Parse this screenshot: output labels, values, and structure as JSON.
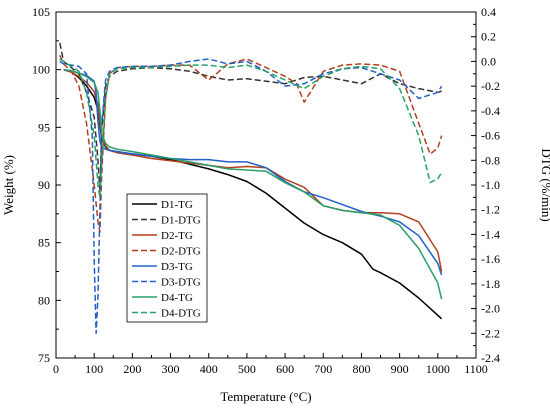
{
  "chart_data": {
    "type": "line",
    "xlabel": "Temperature (°C)",
    "ylabel_left": "Weight (%)",
    "ylabel_right": "DTG (%/min)",
    "xlim": [
      0,
      1100
    ],
    "ylim_left": [
      75,
      105
    ],
    "ylim_right": [
      -2.4,
      0.4
    ],
    "x_ticks": [
      "0",
      "100",
      "200",
      "300",
      "400",
      "500",
      "600",
      "700",
      "800",
      "900",
      "1000",
      "1100"
    ],
    "y_left_ticks": [
      "75",
      "80",
      "85",
      "90",
      "95",
      "100",
      "105"
    ],
    "y_right_ticks": [
      "-2.4",
      "-2.2",
      "-2.0",
      "-1.8",
      "-1.6",
      "-1.4",
      "-1.2",
      "-1.0",
      "-0.8",
      "-0.6",
      "-0.4",
      "-0.2",
      "0.0",
      "0.2",
      "0.4"
    ],
    "grid": false,
    "legend_position": "lower-left",
    "colors": {
      "D1": "#000000",
      "D2": "#b2401f",
      "D3": "#2060c8",
      "D4": "#28a068"
    },
    "series": [
      {
        "name": "D1-TG",
        "axis": "left",
        "style": "solid",
        "color": "#000000",
        "x": [
          20,
          40,
          60,
          80,
          100,
          110,
          115,
          120,
          130,
          140,
          160,
          200,
          250,
          300,
          350,
          400,
          450,
          500,
          550,
          600,
          650,
          700,
          750,
          800,
          830,
          850,
          900,
          950,
          1000,
          1010
        ],
        "y": [
          100.0,
          99.8,
          99.3,
          98.6,
          97.6,
          96.5,
          95.2,
          94.0,
          93.3,
          93.0,
          92.9,
          92.7,
          92.5,
          92.2,
          91.8,
          91.4,
          90.9,
          90.3,
          89.3,
          88.0,
          86.7,
          85.7,
          85.0,
          84.0,
          82.7,
          82.4,
          81.5,
          80.2,
          78.7,
          78.4
        ]
      },
      {
        "name": "D1-DTG",
        "axis": "right",
        "style": "dashed",
        "color": "#333333",
        "x": [
          10,
          20,
          40,
          60,
          80,
          100,
          110,
          115,
          120,
          130,
          140,
          160,
          200,
          250,
          300,
          350,
          400,
          450,
          500,
          550,
          600,
          650,
          700,
          750,
          800,
          850,
          900,
          950,
          1000,
          1010
        ],
        "y": [
          0.15,
          0.0,
          -0.05,
          -0.1,
          -0.25,
          -0.45,
          -0.8,
          -1.05,
          -0.55,
          -0.2,
          -0.12,
          -0.08,
          -0.06,
          -0.05,
          -0.06,
          -0.08,
          -0.12,
          -0.15,
          -0.14,
          -0.16,
          -0.18,
          -0.13,
          -0.12,
          -0.15,
          -0.18,
          -0.1,
          -0.18,
          -0.22,
          -0.25,
          -0.24
        ]
      },
      {
        "name": "D2-TG",
        "axis": "left",
        "style": "solid",
        "color": "#b2401f",
        "x": [
          20,
          40,
          60,
          80,
          100,
          110,
          115,
          120,
          130,
          140,
          160,
          200,
          250,
          300,
          350,
          400,
          450,
          500,
          550,
          600,
          650,
          700,
          750,
          800,
          850,
          900,
          950,
          1000,
          1010
        ],
        "y": [
          100.0,
          99.8,
          99.4,
          98.9,
          98.1,
          97.0,
          95.5,
          94.2,
          93.4,
          93.0,
          92.8,
          92.6,
          92.3,
          92.1,
          91.9,
          91.7,
          91.5,
          91.6,
          91.5,
          90.5,
          89.8,
          88.2,
          87.8,
          87.6,
          87.6,
          87.5,
          86.8,
          84.2,
          82.5
        ]
      },
      {
        "name": "D2-DTG",
        "axis": "right",
        "style": "dashed",
        "color": "#b2401f",
        "x": [
          10,
          20,
          40,
          60,
          80,
          100,
          110,
          115,
          120,
          130,
          140,
          160,
          200,
          250,
          300,
          350,
          400,
          420,
          450,
          500,
          550,
          600,
          630,
          650,
          700,
          750,
          800,
          850,
          900,
          950,
          980,
          1000,
          1010
        ],
        "y": [
          0.05,
          -0.02,
          -0.08,
          -0.2,
          -0.5,
          -1.0,
          -1.3,
          -1.38,
          -0.9,
          -0.3,
          -0.1,
          -0.05,
          -0.04,
          -0.04,
          -0.03,
          -0.03,
          -0.15,
          -0.1,
          -0.02,
          0.02,
          -0.05,
          -0.12,
          -0.18,
          -0.33,
          -0.08,
          -0.03,
          -0.02,
          -0.03,
          -0.08,
          -0.5,
          -0.75,
          -0.7,
          -0.6
        ]
      },
      {
        "name": "D3-TG",
        "axis": "left",
        "style": "solid",
        "color": "#2060c8",
        "x": [
          20,
          40,
          60,
          80,
          100,
          105,
          110,
          115,
          120,
          130,
          140,
          160,
          200,
          250,
          300,
          350,
          400,
          450,
          500,
          550,
          600,
          650,
          700,
          750,
          800,
          850,
          900,
          950,
          1000,
          1010
        ],
        "y": [
          100.0,
          99.9,
          99.7,
          99.5,
          99.0,
          98.0,
          95.5,
          93.8,
          93.3,
          93.1,
          93.0,
          92.9,
          92.7,
          92.5,
          92.3,
          92.2,
          92.2,
          92.0,
          92.0,
          91.5,
          90.3,
          89.4,
          88.9,
          88.3,
          87.7,
          87.3,
          86.8,
          85.6,
          83.2,
          82.2
        ]
      },
      {
        "name": "D3-DTG",
        "axis": "right",
        "style": "dashed",
        "color": "#2060c8",
        "x": [
          10,
          20,
          40,
          60,
          80,
          95,
          100,
          105,
          110,
          115,
          120,
          130,
          140,
          160,
          200,
          250,
          300,
          350,
          400,
          450,
          500,
          550,
          600,
          650,
          700,
          750,
          800,
          850,
          900,
          950,
          1000,
          1010
        ],
        "y": [
          0.0,
          -0.02,
          -0.03,
          -0.04,
          -0.1,
          -0.6,
          -1.6,
          -2.2,
          -1.9,
          -1.2,
          -0.5,
          -0.15,
          -0.08,
          -0.05,
          -0.04,
          -0.04,
          -0.03,
          0.0,
          0.02,
          -0.02,
          0.0,
          -0.08,
          -0.2,
          -0.18,
          -0.1,
          -0.06,
          -0.05,
          -0.1,
          -0.15,
          -0.3,
          -0.25,
          -0.2
        ]
      },
      {
        "name": "D4-TG",
        "axis": "left",
        "style": "solid",
        "color": "#28a068",
        "x": [
          20,
          40,
          60,
          80,
          100,
          110,
          115,
          120,
          130,
          140,
          160,
          200,
          250,
          300,
          350,
          400,
          450,
          500,
          550,
          600,
          650,
          700,
          750,
          800,
          850,
          900,
          950,
          1000,
          1010
        ],
        "y": [
          100.0,
          99.9,
          99.7,
          99.4,
          98.9,
          98.0,
          96.5,
          94.5,
          93.6,
          93.3,
          93.1,
          92.9,
          92.6,
          92.3,
          92.0,
          91.7,
          91.4,
          91.3,
          91.2,
          90.2,
          89.4,
          88.2,
          87.8,
          87.6,
          87.4,
          86.5,
          84.5,
          81.5,
          80.1
        ]
      },
      {
        "name": "D4-DTG",
        "axis": "right",
        "style": "dashed",
        "color": "#28a068",
        "x": [
          10,
          20,
          40,
          60,
          80,
          100,
          110,
          115,
          120,
          130,
          140,
          160,
          200,
          250,
          300,
          350,
          400,
          450,
          500,
          550,
          600,
          650,
          700,
          750,
          800,
          850,
          900,
          950,
          980,
          1000,
          1010
        ],
        "y": [
          0.02,
          0.0,
          -0.04,
          -0.08,
          -0.25,
          -0.6,
          -1.0,
          -1.1,
          -0.8,
          -0.3,
          -0.1,
          -0.06,
          -0.05,
          -0.05,
          -0.04,
          -0.03,
          -0.03,
          -0.05,
          -0.03,
          -0.08,
          -0.15,
          -0.22,
          -0.12,
          -0.06,
          -0.04,
          -0.06,
          -0.22,
          -0.6,
          -0.98,
          -0.95,
          -0.9
        ]
      }
    ]
  }
}
